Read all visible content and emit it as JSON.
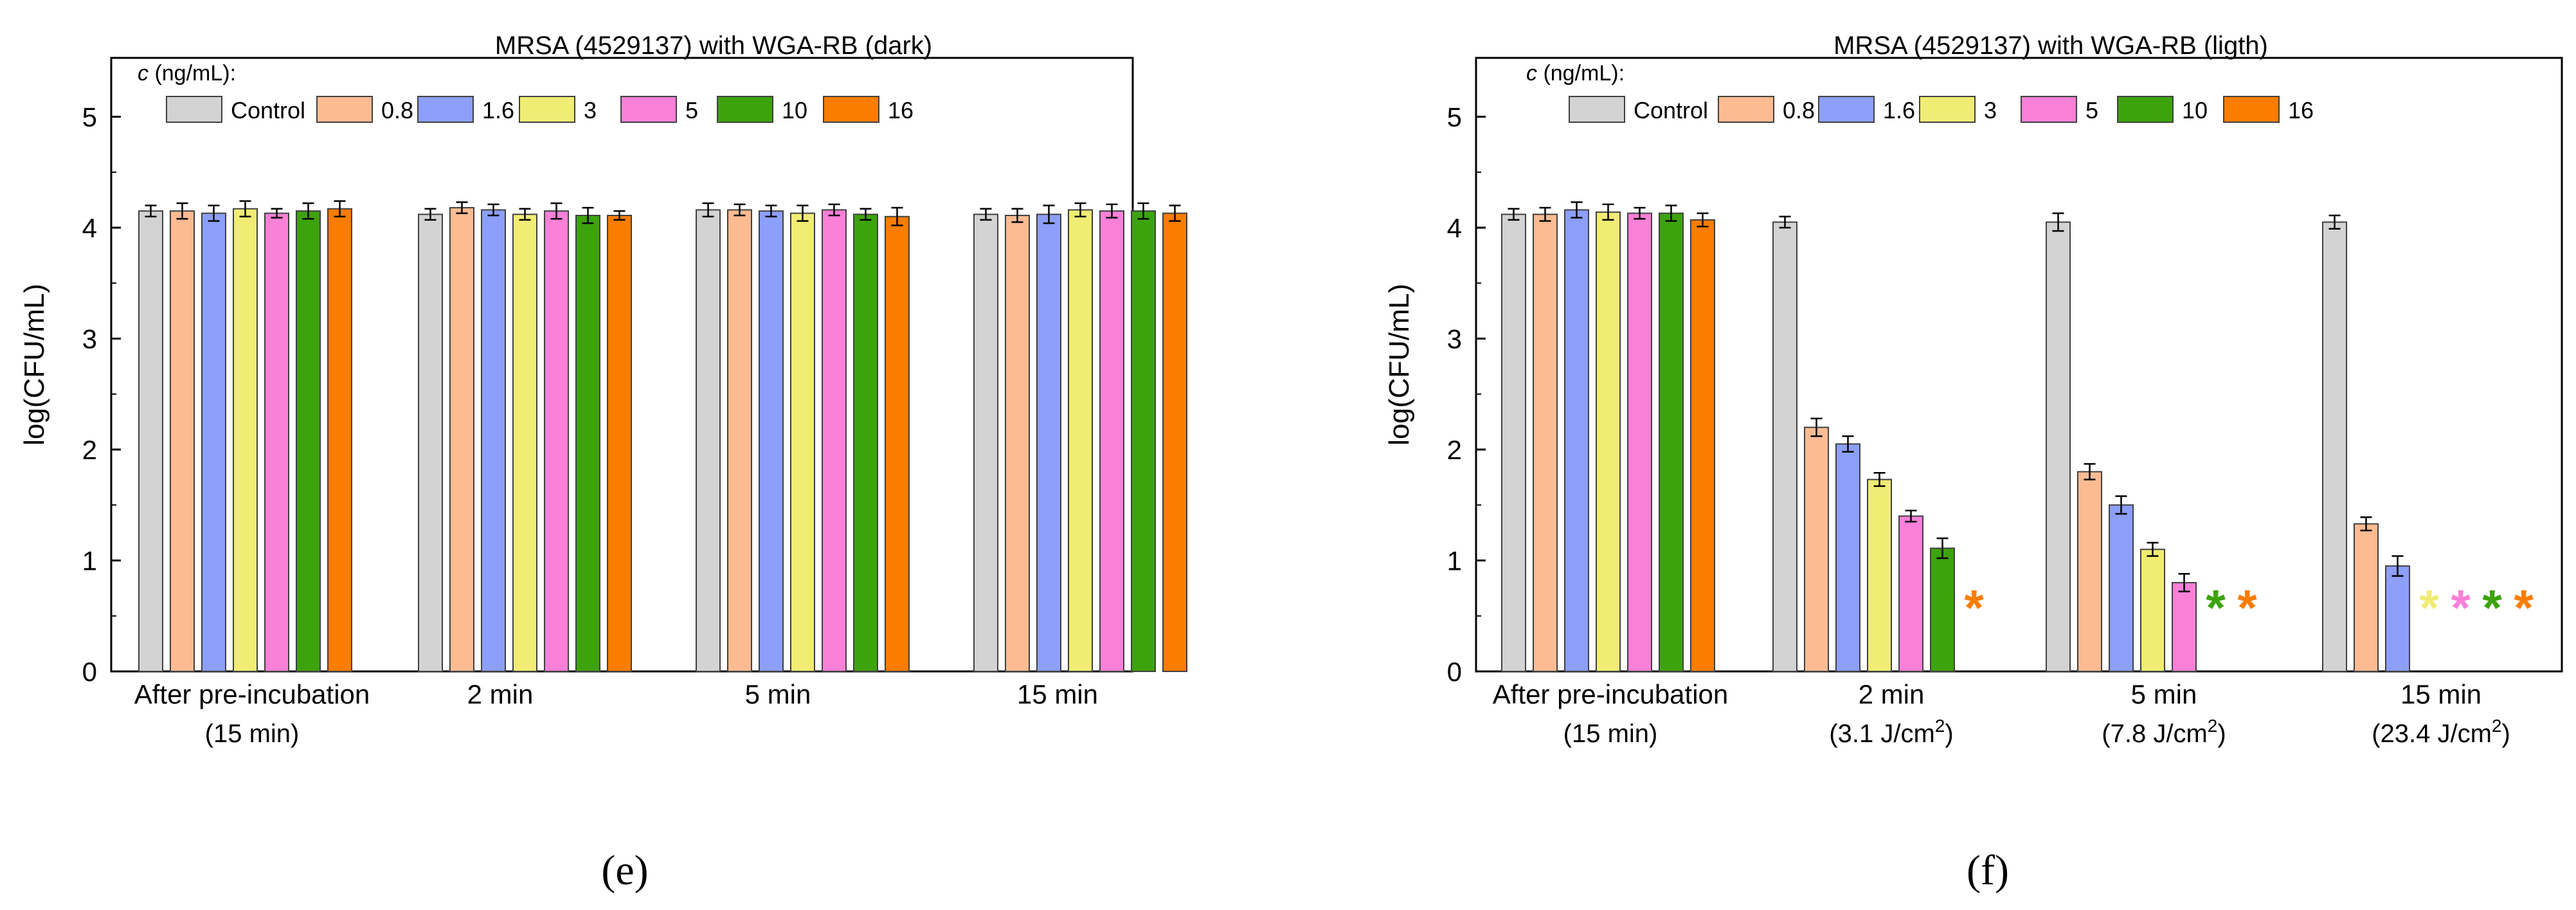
{
  "colors": {
    "Control": "#d3d3d3",
    "0.8": "#fdbb92",
    "1.6": "#8c9ffa",
    "3": "#f0ec74",
    "5": "#fa80d8",
    "10": "#3da30c",
    "16": "#fa7d00"
  },
  "chart_data": [
    {
      "type": "bar",
      "panel": "(e)",
      "title": "MRSA (4529137) with WGA-RB (dark)",
      "xlabel": "",
      "ylabel": "log(CFU/mL)",
      "ylim": [
        0,
        5.5
      ],
      "yticks": [
        "0",
        "1",
        "2",
        "3",
        "4",
        "5"
      ],
      "legend_title_var": "c",
      "legend_title_rest": " (ng/mL):",
      "legend_position": "top-left",
      "categories": [
        {
          "line1": "After pre-incubation",
          "line2": "(15 min)"
        },
        {
          "line1": "2 min",
          "line2": ""
        },
        {
          "line1": "5 min",
          "line2": ""
        },
        {
          "line1": "15 min",
          "line2": ""
        }
      ],
      "series": [
        {
          "name": "Control",
          "values": [
            4.15,
            4.12,
            4.16,
            4.12
          ],
          "errors": [
            0.05,
            0.05,
            0.06,
            0.05
          ],
          "markers": [
            null,
            null,
            null,
            null
          ]
        },
        {
          "name": "0.8",
          "values": [
            4.15,
            4.18,
            4.16,
            4.11
          ],
          "errors": [
            0.07,
            0.05,
            0.05,
            0.06
          ],
          "markers": [
            null,
            null,
            null,
            null
          ]
        },
        {
          "name": "1.6",
          "values": [
            4.13,
            4.16,
            4.15,
            4.12
          ],
          "errors": [
            0.07,
            0.05,
            0.05,
            0.08
          ],
          "markers": [
            null,
            null,
            null,
            null
          ]
        },
        {
          "name": "3",
          "values": [
            4.17,
            4.12,
            4.13,
            4.16
          ],
          "errors": [
            0.07,
            0.05,
            0.07,
            0.06
          ],
          "markers": [
            null,
            null,
            null,
            null
          ]
        },
        {
          "name": "5",
          "values": [
            4.13,
            4.15,
            4.16,
            4.15
          ],
          "errors": [
            0.04,
            0.07,
            0.05,
            0.06
          ],
          "markers": [
            null,
            null,
            null,
            null
          ]
        },
        {
          "name": "10",
          "values": [
            4.15,
            4.11,
            4.12,
            4.15
          ],
          "errors": [
            0.07,
            0.07,
            0.05,
            0.07
          ],
          "markers": [
            null,
            null,
            null,
            null
          ]
        },
        {
          "name": "16",
          "values": [
            4.17,
            4.11,
            4.1,
            4.13
          ],
          "errors": [
            0.07,
            0.04,
            0.08,
            0.07
          ],
          "markers": [
            null,
            null,
            null,
            null
          ]
        }
      ]
    },
    {
      "type": "bar",
      "panel": "(f)",
      "title": "MRSA (4529137) with WGA-RB (ligth)",
      "xlabel": "",
      "ylabel": "log(CFU/mL)",
      "ylim": [
        0,
        5.5
      ],
      "yticks": [
        "0",
        "1",
        "2",
        "3",
        "4",
        "5"
      ],
      "legend_title_var": "c",
      "legend_title_rest": " (ng/mL):",
      "legend_position": "top-left",
      "categories": [
        {
          "line1": "After pre-incubation",
          "line2": "(15 min)"
        },
        {
          "line1": "2 min",
          "line2": "(3.1 J/cm",
          "sup": "2",
          "tail": ")"
        },
        {
          "line1": "5 min",
          "line2": "(7.8 J/cm",
          "sup": "2",
          "tail": ")"
        },
        {
          "line1": "15 min",
          "line2": "(23.4 J/cm",
          "sup": "2",
          "tail": ")"
        }
      ],
      "series": [
        {
          "name": "Control",
          "values": [
            4.12,
            4.05,
            4.05,
            4.05
          ],
          "errors": [
            0.05,
            0.05,
            0.08,
            0.06
          ],
          "markers": [
            null,
            null,
            null,
            null
          ]
        },
        {
          "name": "0.8",
          "values": [
            4.12,
            2.2,
            1.8,
            1.33
          ],
          "errors": [
            0.06,
            0.08,
            0.07,
            0.06
          ],
          "markers": [
            null,
            null,
            null,
            null
          ]
        },
        {
          "name": "1.6",
          "values": [
            4.16,
            2.05,
            1.5,
            0.95
          ],
          "errors": [
            0.07,
            0.07,
            0.08,
            0.09
          ],
          "markers": [
            null,
            null,
            null,
            null
          ]
        },
        {
          "name": "3",
          "values": [
            4.14,
            1.73,
            1.1,
            0
          ],
          "errors": [
            0.07,
            0.06,
            0.06,
            0
          ],
          "markers": [
            null,
            null,
            null,
            "*"
          ]
        },
        {
          "name": "5",
          "values": [
            4.13,
            1.4,
            0.8,
            0
          ],
          "errors": [
            0.05,
            0.05,
            0.08,
            0
          ],
          "markers": [
            null,
            null,
            null,
            "*"
          ]
        },
        {
          "name": "10",
          "values": [
            4.13,
            1.11,
            0,
            0
          ],
          "errors": [
            0.07,
            0.09,
            0,
            0
          ],
          "markers": [
            null,
            null,
            "*",
            "*"
          ]
        },
        {
          "name": "16",
          "values": [
            4.07,
            0,
            0,
            0
          ],
          "errors": [
            0.06,
            0,
            0,
            0
          ],
          "markers": [
            null,
            "*",
            "*",
            "*"
          ]
        }
      ]
    }
  ]
}
